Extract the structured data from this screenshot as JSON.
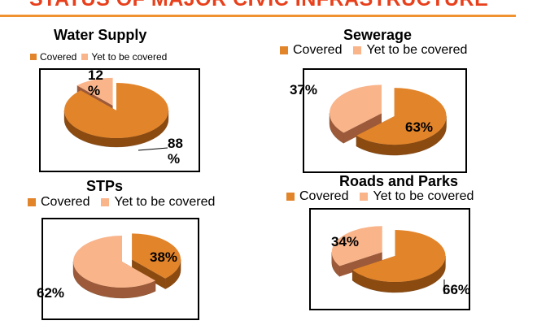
{
  "slide": {
    "title": "STATUS OF MAJOR CIVIC INFRASTRUCTURE"
  },
  "colors": {
    "covered": "#E2842A",
    "covered_side": "#8A4A10",
    "yet": "#F9B48A",
    "yet_side": "#9C5A3A",
    "title": "#E8401C",
    "rule": "#F0922F"
  },
  "chart_data": [
    {
      "type": "pie",
      "title": "Water Supply",
      "categories": [
        "Covered",
        "Yet to be covered"
      ],
      "values": [
        88,
        12
      ],
      "data_labels": [
        "88 %",
        "12 %"
      ],
      "legend": "top"
    },
    {
      "type": "pie",
      "title": "Sewerage",
      "categories": [
        "Covered",
        "Yet to be covered"
      ],
      "values": [
        63,
        37
      ],
      "data_labels": [
        "63%",
        "37%"
      ],
      "legend": "top"
    },
    {
      "type": "pie",
      "title": "STPs",
      "categories": [
        "Covered",
        "Yet to be covered"
      ],
      "values": [
        38,
        62
      ],
      "data_labels": [
        "38%",
        "62%"
      ],
      "legend": "top"
    },
    {
      "type": "pie",
      "title": "Roads and Parks",
      "categories": [
        "Covered",
        "Yet to be covered"
      ],
      "values": [
        66,
        34
      ],
      "data_labels": [
        "66%",
        "34%"
      ],
      "legend": "top"
    }
  ]
}
